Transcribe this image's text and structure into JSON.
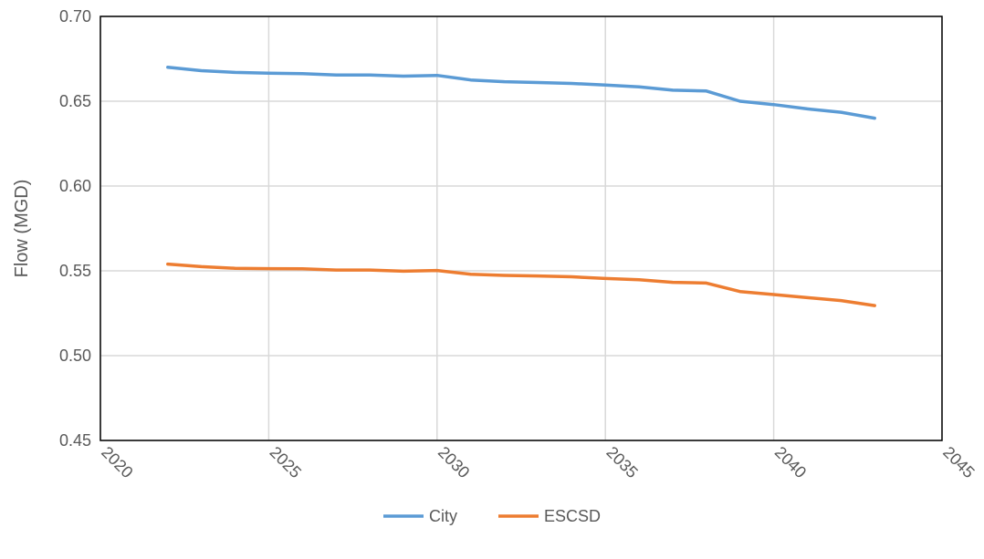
{
  "chart_data": {
    "type": "line",
    "title": "",
    "xlabel": "",
    "ylabel": "Flow (MGD)",
    "xlim": [
      2020,
      2045
    ],
    "ylim": [
      0.45,
      0.7
    ],
    "x_ticks": [
      2020,
      2025,
      2030,
      2035,
      2040,
      2045
    ],
    "y_ticks": [
      "0.45",
      "0.50",
      "0.55",
      "0.60",
      "0.65",
      "0.70"
    ],
    "grid": true,
    "legend_position": "bottom",
    "x": [
      2022,
      2023,
      2024,
      2025,
      2026,
      2027,
      2028,
      2029,
      2030,
      2031,
      2032,
      2033,
      2034,
      2035,
      2036,
      2037,
      2038,
      2039,
      2040,
      2041,
      2042,
      2043
    ],
    "series": [
      {
        "name": "City",
        "color": "#5B9BD5",
        "values": [
          0.67,
          0.668,
          0.667,
          0.6665,
          0.6663,
          0.6655,
          0.6655,
          0.6648,
          0.6652,
          0.6625,
          0.6615,
          0.661,
          0.6605,
          0.6595,
          0.6585,
          0.6565,
          0.656,
          0.65,
          0.648,
          0.6455,
          0.6435,
          0.64
        ]
      },
      {
        "name": "ESCSD",
        "color": "#ED7D31",
        "values": [
          0.554,
          0.5525,
          0.5515,
          0.5513,
          0.5512,
          0.5505,
          0.5505,
          0.5498,
          0.5502,
          0.548,
          0.5473,
          0.547,
          0.5465,
          0.5455,
          0.5448,
          0.5432,
          0.5428,
          0.5378,
          0.536,
          0.5342,
          0.5325,
          0.5295
        ]
      }
    ]
  }
}
